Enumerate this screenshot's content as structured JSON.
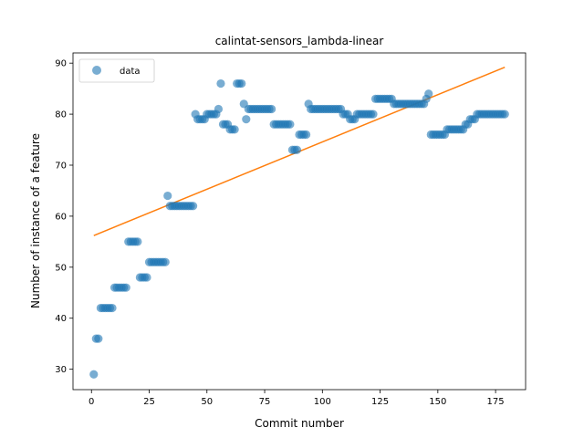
{
  "chart_data": {
    "type": "scatter",
    "title": "calintat-sensors_lambda-linear",
    "xlabel": "Commit number",
    "ylabel": "Number of instance of a feature",
    "xlim": [
      -8,
      188
    ],
    "ylim": [
      26,
      92
    ],
    "xticks": [
      0,
      25,
      50,
      75,
      100,
      125,
      150,
      175
    ],
    "yticks": [
      30,
      40,
      50,
      60,
      70,
      80,
      90
    ],
    "legend": {
      "placement": "top-left",
      "label": "data"
    },
    "colors": {
      "data": "#1f77b4",
      "fit": "#ff7f0e"
    },
    "series": [
      {
        "name": "data",
        "kind": "scatter",
        "x": [
          1,
          2,
          3,
          4,
          5,
          6,
          7,
          8,
          9,
          10,
          11,
          12,
          13,
          14,
          15,
          16,
          17,
          18,
          19,
          20,
          21,
          22,
          23,
          24,
          25,
          26,
          27,
          28,
          29,
          30,
          31,
          32,
          33,
          34,
          35,
          36,
          37,
          38,
          39,
          40,
          41,
          42,
          43,
          44,
          45,
          46,
          47,
          48,
          49,
          50,
          51,
          52,
          53,
          54,
          55,
          56,
          57,
          58,
          59,
          60,
          61,
          62,
          63,
          64,
          65,
          66,
          67,
          68,
          69,
          70,
          71,
          72,
          73,
          74,
          75,
          76,
          77,
          78,
          79,
          80,
          81,
          82,
          83,
          84,
          85,
          86,
          87,
          88,
          89,
          90,
          91,
          92,
          93,
          94,
          95,
          96,
          97,
          98,
          99,
          100,
          101,
          102,
          103,
          104,
          105,
          106,
          107,
          108,
          109,
          110,
          111,
          112,
          113,
          114,
          115,
          116,
          117,
          118,
          119,
          120,
          121,
          122,
          123,
          124,
          125,
          126,
          127,
          128,
          129,
          130,
          131,
          132,
          133,
          134,
          135,
          136,
          137,
          138,
          139,
          140,
          141,
          142,
          143,
          144,
          145,
          146,
          147,
          148,
          149,
          150,
          151,
          152,
          153,
          154,
          155,
          156,
          157,
          158,
          159,
          160,
          161,
          162,
          163,
          164,
          165,
          166,
          167,
          168,
          169,
          170,
          171,
          172,
          173,
          174,
          175,
          176,
          177,
          178,
          179
        ],
        "y": [
          29,
          36,
          36,
          42,
          42,
          42,
          42,
          42,
          42,
          46,
          46,
          46,
          46,
          46,
          46,
          55,
          55,
          55,
          55,
          55,
          48,
          48,
          48,
          48,
          51,
          51,
          51,
          51,
          51,
          51,
          51,
          51,
          64,
          62,
          62,
          62,
          62,
          62,
          62,
          62,
          62,
          62,
          62,
          62,
          80,
          79,
          79,
          79,
          79,
          80,
          80,
          80,
          80,
          80,
          81,
          86,
          78,
          78,
          78,
          77,
          77,
          77,
          86,
          86,
          86,
          82,
          79,
          81,
          81,
          81,
          81,
          81,
          81,
          81,
          81,
          81,
          81,
          81,
          78,
          78,
          78,
          78,
          78,
          78,
          78,
          78,
          73,
          73,
          73,
          76,
          76,
          76,
          76,
          82,
          81,
          81,
          81,
          81,
          81,
          81,
          81,
          81,
          81,
          81,
          81,
          81,
          81,
          81,
          80,
          80,
          80,
          79,
          79,
          79,
          80,
          80,
          80,
          80,
          80,
          80,
          80,
          80,
          83,
          83,
          83,
          83,
          83,
          83,
          83,
          83,
          82,
          82,
          82,
          82,
          82,
          82,
          82,
          82,
          82,
          82,
          82,
          82,
          82,
          82,
          83,
          84,
          76,
          76,
          76,
          76,
          76,
          76,
          76,
          77,
          77,
          77,
          77,
          77,
          77,
          77,
          77,
          78,
          78,
          79,
          79,
          79,
          80,
          80,
          80,
          80,
          80,
          80,
          80,
          80,
          80,
          80,
          80,
          80,
          80
        ]
      },
      {
        "name": "",
        "kind": "line",
        "x": [
          1,
          179
        ],
        "y": [
          56.2,
          89.2
        ]
      }
    ]
  }
}
